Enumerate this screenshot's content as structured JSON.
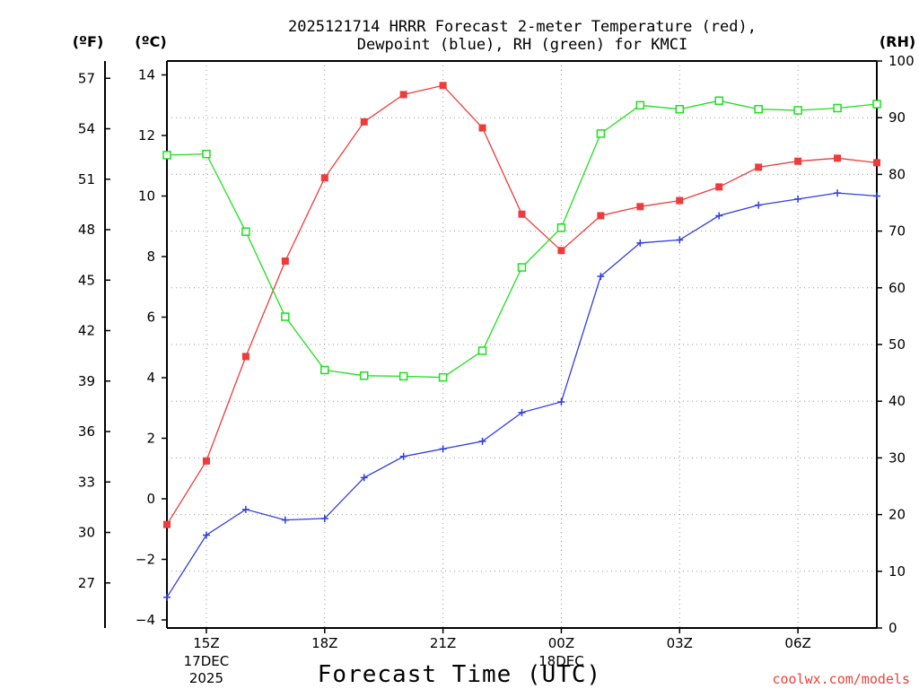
{
  "chart_data": {
    "type": "line",
    "title": [
      "2025121714 HRRR Forecast 2-meter Temperature (red),",
      "Dewpoint (blue), RH (green) for KMCI"
    ],
    "xlabel": "Forecast Time (UTC)",
    "credit": "coolwx.com/models",
    "units": {
      "fahrenheit": "(ºF)",
      "celsius": "(ºC)",
      "rh": "(RH)"
    },
    "x_ticks": [
      {
        "label": "15Z",
        "sub": [
          "17DEC",
          "2025"
        ],
        "hour": 1
      },
      {
        "label": "18Z",
        "sub": [],
        "hour": 4
      },
      {
        "label": "21Z",
        "sub": [],
        "hour": 7
      },
      {
        "label": "00Z",
        "sub": [
          "18DEC"
        ],
        "hour": 10
      },
      {
        "label": "03Z",
        "sub": [],
        "hour": 13
      },
      {
        "label": "06Z",
        "sub": [],
        "hour": 16
      }
    ],
    "x_range": [
      0,
      18
    ],
    "celsius_axis": {
      "range": [
        -4,
        14
      ],
      "ticks": [
        -4,
        -2,
        0,
        2,
        4,
        6,
        8,
        10,
        12,
        14
      ]
    },
    "fahrenheit_axis": {
      "ticks": [
        27,
        30,
        33,
        36,
        39,
        42,
        45,
        48,
        51,
        54,
        57
      ]
    },
    "rh_axis": {
      "range": [
        0,
        100
      ],
      "ticks": [
        0,
        10,
        20,
        30,
        40,
        50,
        60,
        70,
        80,
        90,
        100
      ]
    },
    "series": [
      {
        "name": "Temperature",
        "color": "#ee3b3b",
        "marker": "filled-square",
        "axis": "celsius",
        "values": [
          -0.85,
          1.25,
          4.7,
          7.85,
          10.6,
          12.45,
          13.35,
          13.65,
          12.25,
          9.4,
          8.2,
          9.35,
          9.65,
          9.85,
          10.3,
          10.95,
          11.15,
          11.25,
          11.1
        ]
      },
      {
        "name": "Dewpoint",
        "color": "#2f3fdf",
        "marker": "plus",
        "axis": "celsius",
        "values": [
          -3.25,
          -1.2,
          -0.35,
          -0.7,
          -0.65,
          0.7,
          1.4,
          1.65,
          1.9,
          2.85,
          3.2,
          7.35,
          8.45,
          8.55,
          9.35,
          9.7,
          9.9,
          10.1,
          10.0
        ]
      },
      {
        "name": "RH",
        "color": "#1ee01e",
        "marker": "open-square",
        "axis": "rh",
        "values": [
          83.4,
          83.6,
          69.9,
          54.9,
          45.5,
          44.5,
          44.4,
          44.2,
          48.9,
          63.6,
          70.6,
          87.2,
          92.2,
          91.5,
          93.0,
          91.5,
          91.3,
          91.7,
          92.4
        ]
      }
    ]
  }
}
